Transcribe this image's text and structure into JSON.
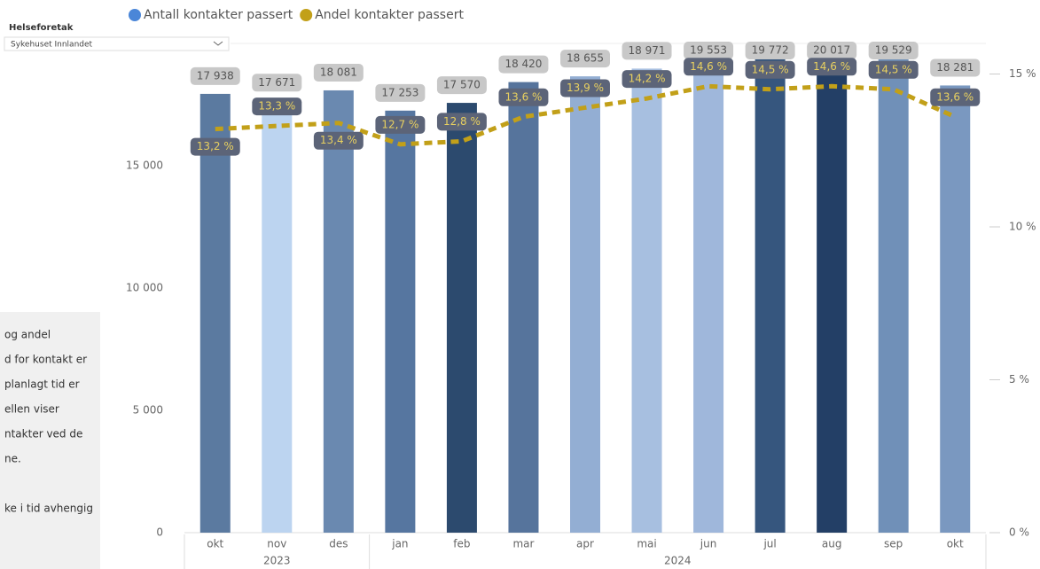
{
  "slicer": {
    "label": "Helseforetak",
    "value": "Sykehuset Innlandet"
  },
  "textbox": {
    "lines": [
      "og andel",
      "d for kontakt er",
      "planlagt tid er",
      "ellen viser",
      "ntakter ved de",
      "ne.",
      "ke i tid avhengig"
    ]
  },
  "chart_data": {
    "type": "bar_line",
    "categories": [
      "okt",
      "nov",
      "des",
      "jan",
      "feb",
      "mar",
      "apr",
      "mai",
      "jun",
      "jul",
      "aug",
      "sep",
      "okt"
    ],
    "years": [
      "2023",
      "2023",
      "2023",
      "2024",
      "2024",
      "2024",
      "2024",
      "2024",
      "2024",
      "2024",
      "2024",
      "2024",
      "2024"
    ],
    "series": [
      {
        "name": "Antall kontakter passert",
        "color": "#4a86d8",
        "type": "bar",
        "colors": [
          "#5b7aa0",
          "#bcd4f0",
          "#6a89b0",
          "#5676a0",
          "#2c4a6e",
          "#56749c",
          "#93aed3",
          "#a7bfe0",
          "#9fb7db",
          "#36567e",
          "#233f66",
          "#7090b8",
          "#7a98c0"
        ],
        "values": [
          17938,
          17671,
          18081,
          17253,
          17570,
          18420,
          18655,
          18971,
          19553,
          19772,
          20017,
          19529,
          18281
        ],
        "value_labels": [
          "17 938",
          "17 671",
          "18 081",
          "17 253",
          "17 570",
          "18 420",
          "18 655",
          "18 971",
          "19 553",
          "19 772",
          "20 017",
          "19 529",
          "18 281"
        ]
      },
      {
        "name": "Andel kontakter passert",
        "color": "#c2a019",
        "type": "line",
        "axis": "y2",
        "values": [
          13.2,
          13.3,
          13.4,
          12.7,
          12.8,
          13.6,
          13.9,
          14.2,
          14.6,
          14.5,
          14.6,
          14.5,
          13.6
        ],
        "value_labels": [
          "13,2 %",
          "13,3 %",
          "13,4 %",
          "12,7 %",
          "12,8 %",
          "13,6 %",
          "13,9 %",
          "14,2 %",
          "14,6 %",
          "14,5 %",
          "14,6 %",
          "14,5 %",
          "13,6 %"
        ]
      }
    ],
    "ylim": [
      0,
      20000
    ],
    "yticks": [
      {
        "value": 0,
        "label": "0"
      },
      {
        "value": 5000,
        "label": "5 000"
      },
      {
        "value": 10000,
        "label": "10 000"
      },
      {
        "value": 15000,
        "label": "15 000"
      }
    ],
    "y2lim": [
      0,
      16
    ],
    "y2ticks": [
      {
        "value": 0,
        "label": "0 %"
      },
      {
        "value": 5,
        "label": "5 %"
      },
      {
        "value": 10,
        "label": "10 %"
      },
      {
        "value": 15,
        "label": "15 %"
      }
    ]
  }
}
